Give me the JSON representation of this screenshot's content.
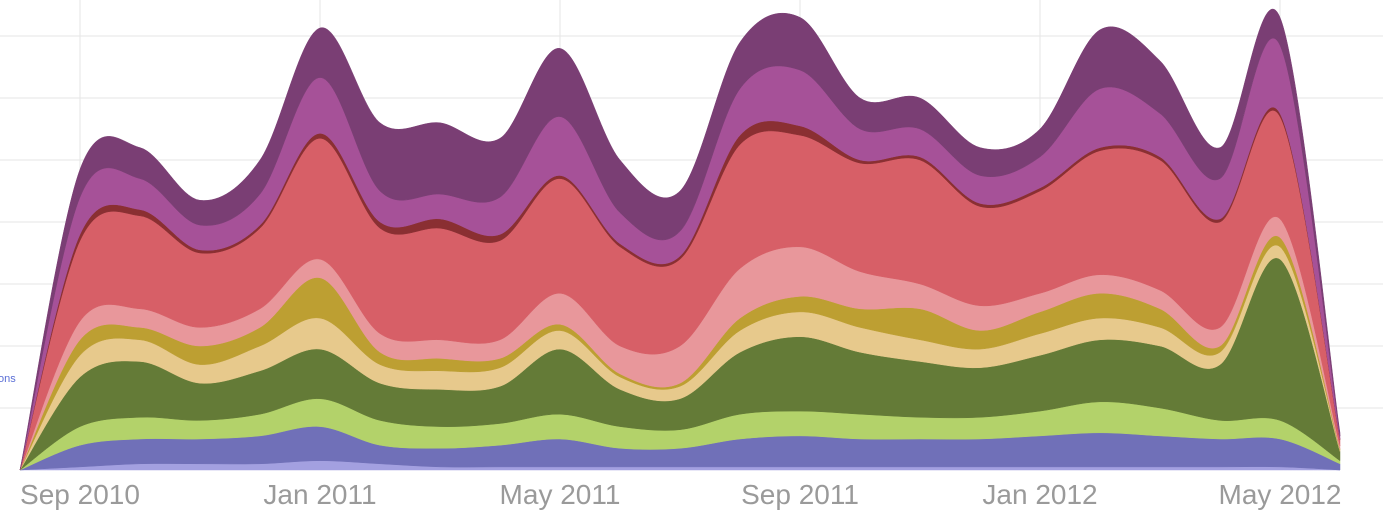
{
  "chart_data": {
    "type": "stacked_area",
    "annotation": "ons",
    "x": [
      "2010-08",
      "2010-09",
      "2010-10",
      "2010-11",
      "2010-12",
      "2011-01",
      "2011-02",
      "2011-03",
      "2011-04",
      "2011-05",
      "2011-06",
      "2011-07",
      "2011-08",
      "2011-09",
      "2011-10",
      "2011-11",
      "2011-12",
      "2012-01",
      "2012-02",
      "2012-03",
      "2012-04",
      "2012-05",
      "2012-06"
    ],
    "xlim": [
      "2010-08",
      "2012-06"
    ],
    "xticks": [
      {
        "value": "2010-09",
        "label": "Sep 2010"
      },
      {
        "value": "2011-01",
        "label": "Jan 2011"
      },
      {
        "value": "2011-05",
        "label": "May 2011"
      },
      {
        "value": "2011-09",
        "label": "Sep 2011"
      },
      {
        "value": "2012-01",
        "label": "Jan 2012"
      },
      {
        "value": "2012-05",
        "label": "May 2012"
      }
    ],
    "ylim": [
      0,
      7.5
    ],
    "yticks": [
      1,
      2,
      3,
      4,
      5,
      6,
      7
    ],
    "grid": true,
    "smooth": true,
    "series": [
      {
        "color": "#a3a0e0",
        "values": [
          0,
          0.05,
          0.1,
          0.1,
          0.1,
          0.15,
          0.1,
          0.05,
          0.05,
          0.05,
          0.05,
          0.05,
          0.05,
          0.05,
          0.05,
          0.05,
          0.05,
          0.05,
          0.05,
          0.05,
          0.05,
          0.05,
          0
        ]
      },
      {
        "color": "#7070b8",
        "values": [
          0,
          0.35,
          0.4,
          0.4,
          0.45,
          0.55,
          0.3,
          0.3,
          0.35,
          0.45,
          0.3,
          0.3,
          0.45,
          0.5,
          0.45,
          0.45,
          0.45,
          0.5,
          0.55,
          0.5,
          0.45,
          0.45,
          0.1
        ]
      },
      {
        "color": "#b3d26a",
        "values": [
          0,
          0.3,
          0.35,
          0.3,
          0.35,
          0.45,
          0.4,
          0.35,
          0.35,
          0.4,
          0.35,
          0.3,
          0.4,
          0.4,
          0.4,
          0.35,
          0.35,
          0.4,
          0.5,
          0.45,
          0.3,
          0.3,
          0.05
        ]
      },
      {
        "color": "#647b37",
        "values": [
          0,
          0.8,
          0.9,
          0.6,
          0.7,
          0.8,
          0.6,
          0.6,
          0.6,
          1.05,
          0.6,
          0.5,
          1.0,
          1.2,
          1.0,
          0.9,
          0.8,
          0.9,
          1.0,
          1.0,
          0.9,
          2.6,
          0.15
        ]
      },
      {
        "color": "#e7c98c",
        "values": [
          0,
          0.35,
          0.35,
          0.3,
          0.4,
          0.5,
          0.3,
          0.3,
          0.3,
          0.3,
          0.2,
          0.2,
          0.35,
          0.4,
          0.4,
          0.35,
          0.3,
          0.35,
          0.35,
          0.3,
          0.2,
          0.2,
          0.02
        ]
      },
      {
        "color": "#bd9f32",
        "values": [
          0,
          0.25,
          0.2,
          0.3,
          0.3,
          0.65,
          0.2,
          0.2,
          0.15,
          0.1,
          0.05,
          0.05,
          0.2,
          0.25,
          0.3,
          0.5,
          0.3,
          0.35,
          0.4,
          0.3,
          0.1,
          0.15,
          0.02
        ]
      },
      {
        "color": "#e8979b",
        "values": [
          0,
          0.3,
          0.3,
          0.3,
          0.3,
          0.3,
          0.3,
          0.3,
          0.3,
          0.5,
          0.45,
          0.6,
          0.8,
          0.8,
          0.6,
          0.4,
          0.4,
          0.3,
          0.3,
          0.3,
          0.3,
          0.3,
          0.05
        ]
      },
      {
        "color": "#d75f67",
        "values": [
          0,
          1.3,
          1.5,
          1.2,
          1.3,
          1.95,
          1.7,
          1.8,
          1.6,
          1.85,
          1.6,
          1.4,
          2.0,
          1.8,
          1.75,
          2.0,
          1.6,
          1.65,
          2.0,
          2.1,
          1.7,
          1.65,
          0.1
        ]
      },
      {
        "color": "#8a2f32",
        "values": [
          0,
          0.1,
          0.1,
          0.05,
          0.05,
          0.08,
          0.1,
          0.15,
          0.1,
          0.05,
          0.05,
          0.05,
          0.15,
          0.15,
          0.05,
          0.05,
          0.05,
          0.05,
          0.05,
          0.05,
          0.05,
          0.05,
          0.01
        ]
      },
      {
        "color": "#a65198",
        "values": [
          0,
          0.6,
          0.5,
          0.4,
          0.5,
          0.9,
          0.5,
          0.4,
          0.6,
          0.95,
          0.5,
          0.4,
          0.75,
          0.9,
          0.5,
          0.45,
          0.45,
          0.5,
          0.95,
          0.7,
          0.65,
          1.1,
          0.05
        ]
      },
      {
        "color": "#7a3e74",
        "values": [
          0,
          0.45,
          0.5,
          0.4,
          0.55,
          0.8,
          1.1,
          1.15,
          0.95,
          1.1,
          0.85,
          0.65,
          0.75,
          0.85,
          0.5,
          0.5,
          0.45,
          0.45,
          0.95,
          0.85,
          0.5,
          0.45,
          0.05
        ]
      }
    ]
  }
}
